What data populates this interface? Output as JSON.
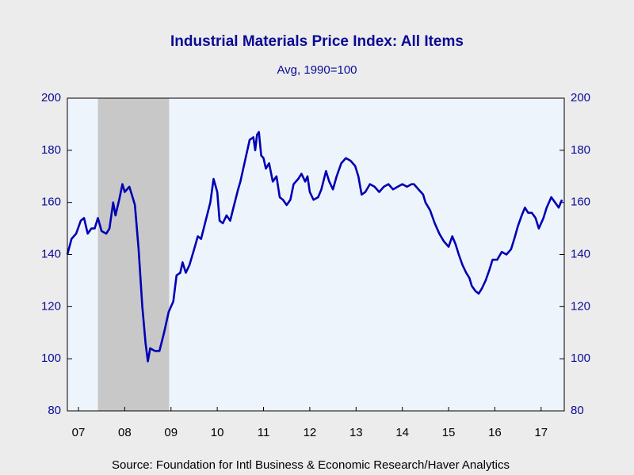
{
  "chart_data": {
    "type": "line",
    "title": "Industrial Materials Price Index: All Items",
    "subtitle": "Avg, 1990=100",
    "source": "Source:  Foundation for Intl Business & Economic Research/Haver Analytics",
    "xlim": [
      2007.26,
      2018.0
    ],
    "xticks": [
      {
        "value": 2007.5,
        "label": "07"
      },
      {
        "value": 2008.5,
        "label": "08"
      },
      {
        "value": 2009.5,
        "label": "09"
      },
      {
        "value": 2010.5,
        "label": "10"
      },
      {
        "value": 2011.5,
        "label": "11"
      },
      {
        "value": 2012.5,
        "label": "12"
      },
      {
        "value": 2013.5,
        "label": "13"
      },
      {
        "value": 2014.5,
        "label": "14"
      },
      {
        "value": 2015.5,
        "label": "15"
      },
      {
        "value": 2016.5,
        "label": "16"
      },
      {
        "value": 2017.5,
        "label": "17"
      }
    ],
    "ylim": [
      80,
      200
    ],
    "yticks": [
      80,
      100,
      120,
      140,
      160,
      180,
      200
    ],
    "y2lim": [
      80,
      200
    ],
    "y2ticks": [
      80,
      100,
      120,
      140,
      160,
      180,
      200
    ],
    "shaded": [
      [
        2007.92,
        2009.46
      ]
    ],
    "shade_color": "#c8c8c8",
    "x": [
      2007.26,
      2007.35,
      2007.45,
      2007.55,
      2007.62,
      2007.7,
      2007.78,
      2007.85,
      2007.92,
      2008.0,
      2008.1,
      2008.17,
      2008.25,
      2008.3,
      2008.38,
      2008.45,
      2008.5,
      2008.6,
      2008.67,
      2008.72,
      2008.8,
      2008.88,
      2008.95,
      2009.0,
      2009.05,
      2009.15,
      2009.25,
      2009.35,
      2009.45,
      2009.55,
      2009.62,
      2009.7,
      2009.75,
      2009.82,
      2009.9,
      2010.0,
      2010.08,
      2010.15,
      2010.25,
      2010.35,
      2010.42,
      2010.5,
      2010.55,
      2010.62,
      2010.7,
      2010.78,
      2010.85,
      2010.95,
      2011.0,
      2011.1,
      2011.2,
      2011.28,
      2011.32,
      2011.36,
      2011.4,
      2011.45,
      2011.5,
      2011.55,
      2011.62,
      2011.7,
      2011.78,
      2011.85,
      2011.92,
      2012.0,
      2012.08,
      2012.15,
      2012.25,
      2012.32,
      2012.4,
      2012.45,
      2012.5,
      2012.58,
      2012.68,
      2012.75,
      2012.85,
      2012.92,
      2013.0,
      2013.08,
      2013.18,
      2013.28,
      2013.38,
      2013.48,
      2013.55,
      2013.62,
      2013.7,
      2013.8,
      2013.9,
      2014.0,
      2014.1,
      2014.2,
      2014.3,
      2014.4,
      2014.5,
      2014.6,
      2014.7,
      2014.75,
      2014.85,
      2014.95,
      2015.0,
      2015.1,
      2015.2,
      2015.3,
      2015.4,
      2015.5,
      2015.58,
      2015.65,
      2015.72,
      2015.8,
      2015.88,
      2015.95,
      2016.0,
      2016.08,
      2016.15,
      2016.22,
      2016.3,
      2016.38,
      2016.45,
      2016.55,
      2016.65,
      2016.75,
      2016.85,
      2016.92,
      2017.0,
      2017.08,
      2017.15,
      2017.22,
      2017.3,
      2017.38,
      2017.45,
      2017.55,
      2017.62,
      2017.72,
      2017.8,
      2017.88,
      2017.95
    ],
    "series": [
      {
        "color": "#0000b4",
        "values": [
          140,
          146,
          148,
          153,
          154,
          148,
          150,
          150,
          154,
          149,
          148,
          150,
          160,
          155,
          161,
          167,
          164,
          166,
          162,
          159,
          142,
          120,
          106,
          99,
          104,
          103,
          103,
          110,
          118,
          122,
          132,
          133,
          137,
          133,
          136,
          142,
          147,
          146,
          153,
          160,
          169,
          164,
          153,
          152,
          155,
          153,
          158,
          165,
          168,
          176,
          184,
          185,
          180,
          186,
          187,
          178,
          177,
          173,
          175,
          168,
          170,
          162,
          161,
          159,
          161,
          167,
          169,
          171,
          168,
          170,
          164,
          161,
          162,
          165,
          172,
          168,
          165,
          170,
          175,
          177,
          176,
          174,
          170,
          163,
          164,
          167,
          166,
          164,
          166,
          167,
          165,
          166,
          167,
          166,
          167,
          167,
          165,
          163,
          160,
          157,
          152,
          148,
          145,
          143,
          147,
          144,
          140,
          136,
          133,
          131,
          128,
          126,
          125,
          127,
          130,
          134,
          138,
          138,
          141,
          140,
          142,
          146,
          151,
          155,
          158,
          156,
          156,
          154,
          150,
          154,
          158,
          162,
          160,
          158,
          161
        ]
      }
    ]
  }
}
